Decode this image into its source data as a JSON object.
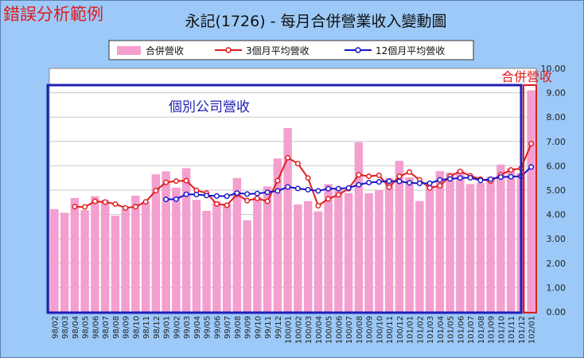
{
  "overlay": {
    "tag": "錯誤分析範例",
    "box_label": "個別公司營收",
    "highlight_label": "合併營收",
    "accent": "#e01b1b",
    "box_color": "#1f1fb4"
  },
  "chart_data": {
    "type": "bar",
    "title": "永記(1726)  - 每月合併營業收入變動圖",
    "xlabel": "",
    "ylabel": "",
    "ylim": [
      0,
      10
    ],
    "yticks": [
      "0.00",
      "1.00",
      "2.00",
      "3.00",
      "4.00",
      "5.00",
      "6.00",
      "7.00",
      "8.00",
      "9.00",
      "10.00"
    ],
    "grid": true,
    "legend_position": "top",
    "categories": [
      "98/02",
      "98/03",
      "98/04",
      "98/05",
      "98/06",
      "98/07",
      "98/08",
      "98/09",
      "98/10",
      "98/11",
      "98/12",
      "99/01",
      "99/02",
      "99/03",
      "99/04",
      "99/05",
      "99/06",
      "99/07",
      "99/08",
      "99/09",
      "99/10",
      "99/11",
      "99/12",
      "100/01",
      "100/02",
      "100/03",
      "100/04",
      "100/05",
      "100/06",
      "100/07",
      "100/08",
      "100/09",
      "100/10",
      "100/11",
      "100/12",
      "101/01",
      "101/02",
      "101/03",
      "101/04",
      "101/05",
      "101/06",
      "101/07",
      "101/08",
      "101/09",
      "101/10",
      "101/11",
      "101/12",
      "102/01"
    ],
    "series": [
      {
        "name": "合併營收",
        "color": "#f39fcf",
        "values": [
          4.22,
          4.07,
          4.68,
          4.18,
          4.75,
          4.6,
          3.95,
          4.25,
          4.77,
          4.53,
          5.65,
          5.77,
          5.1,
          5.9,
          4.6,
          4.15,
          4.55,
          4.45,
          5.5,
          3.76,
          4.72,
          5.15,
          6.3,
          7.55,
          4.41,
          4.55,
          4.13,
          5.25,
          5.05,
          4.88,
          6.97,
          4.87,
          5.0,
          5.5,
          6.2,
          5.52,
          4.55,
          5.2,
          5.78,
          5.72,
          5.8,
          5.25,
          5.3,
          5.55,
          6.05,
          5.9,
          5.72,
          9.1
        ]
      },
      {
        "name": "3個月平均營收",
        "color": "#e01b1b",
        "values": [
          null,
          null,
          4.32,
          4.31,
          4.54,
          4.51,
          4.43,
          4.27,
          4.32,
          4.52,
          4.98,
          5.32,
          5.37,
          5.39,
          4.99,
          4.88,
          4.43,
          4.38,
          4.83,
          4.57,
          4.66,
          4.54,
          5.39,
          6.33,
          6.09,
          5.5,
          4.36,
          4.64,
          4.81,
          5.06,
          5.63,
          5.57,
          5.61,
          5.12,
          5.57,
          5.74,
          5.42,
          5.09,
          5.18,
          5.57,
          5.77,
          5.59,
          5.45,
          5.37,
          5.63,
          5.83,
          5.89,
          6.91
        ]
      },
      {
        "name": "12個月平均營收",
        "color": "#1515c8",
        "values": [
          null,
          null,
          null,
          null,
          null,
          null,
          null,
          null,
          null,
          null,
          null,
          4.62,
          4.63,
          4.83,
          4.82,
          4.78,
          4.76,
          4.75,
          4.88,
          4.84,
          4.86,
          4.91,
          4.97,
          5.13,
          5.07,
          5.02,
          4.97,
          5.06,
          5.06,
          5.09,
          5.22,
          5.31,
          5.34,
          5.37,
          5.36,
          5.3,
          5.28,
          5.28,
          5.42,
          5.46,
          5.5,
          5.51,
          5.4,
          5.45,
          5.54,
          5.55,
          5.57,
          5.95
        ]
      }
    ]
  }
}
